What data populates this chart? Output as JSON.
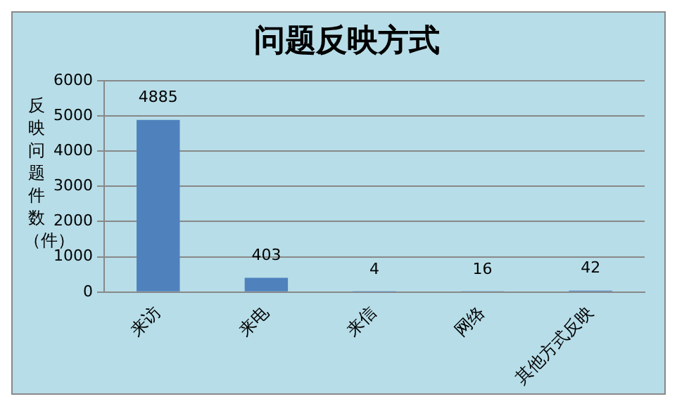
{
  "chart_data": {
    "type": "bar",
    "title": "问题反映方式",
    "ylabel": "反映问题件数（件）",
    "categories": [
      "来访",
      "来电",
      "来信",
      "网络",
      "其他方式反映"
    ],
    "values": [
      4885,
      403,
      4,
      16,
      42
    ],
    "color": "#4f81bd",
    "ylim": [
      0,
      6000
    ],
    "yticks": [
      0,
      1000,
      2000,
      3000,
      4000,
      5000,
      6000
    ],
    "grid": "y",
    "data_labels": true,
    "legend": false
  }
}
